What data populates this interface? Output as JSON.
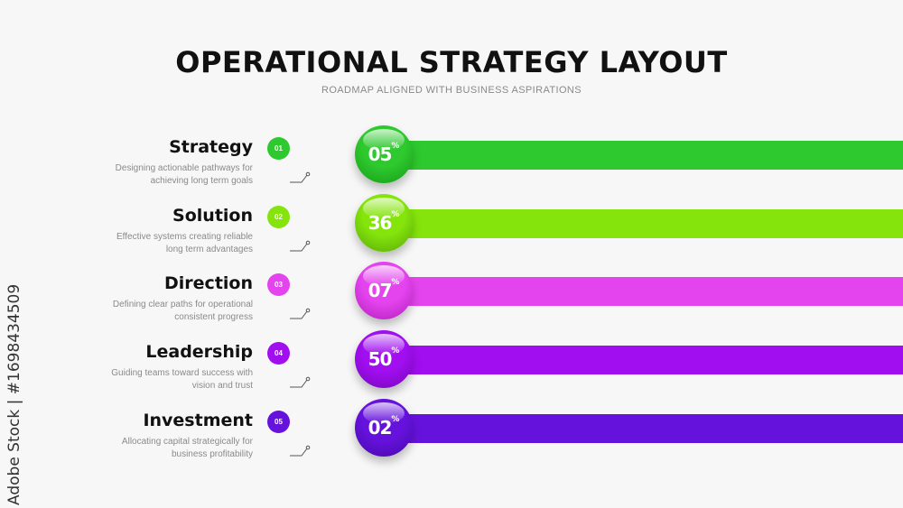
{
  "header": {
    "title": "OPERATIONAL STRATEGY LAYOUT",
    "subtitle": "ROADMAP ALIGNED WITH BUSINESS ASPIRATIONS"
  },
  "watermark": "Adobe Stock | #1698434509",
  "items": [
    {
      "title": "Strategy",
      "desc1": "Designing actionable pathways for",
      "desc2": "achieving long term goals",
      "number": "01",
      "value": "05",
      "unit": "%",
      "color": "#2ec92e",
      "dark": "#179a17"
    },
    {
      "title": "Solution",
      "desc1": "Effective systems creating reliable",
      "desc2": "long term advantages",
      "number": "02",
      "value": "36",
      "unit": "%",
      "color": "#84e40c",
      "dark": "#57a806"
    },
    {
      "title": "Direction",
      "desc1": "Defining clear paths for operational",
      "desc2": "consistent progress",
      "number": "03",
      "value": "07",
      "unit": "%",
      "color": "#e444ee",
      "dark": "#b11dbc"
    },
    {
      "title": "Leadership",
      "desc1": "Guiding teams toward success with",
      "desc2": "vision and trust",
      "number": "04",
      "value": "50",
      "unit": "%",
      "color": "#a10ef0",
      "dark": "#7407b8"
    },
    {
      "title": "Investment",
      "desc1": "Allocating capital strategically for",
      "desc2": "business profitability",
      "number": "05",
      "value": "02",
      "unit": "%",
      "color": "#6612dd",
      "dark": "#4508a8"
    }
  ]
}
